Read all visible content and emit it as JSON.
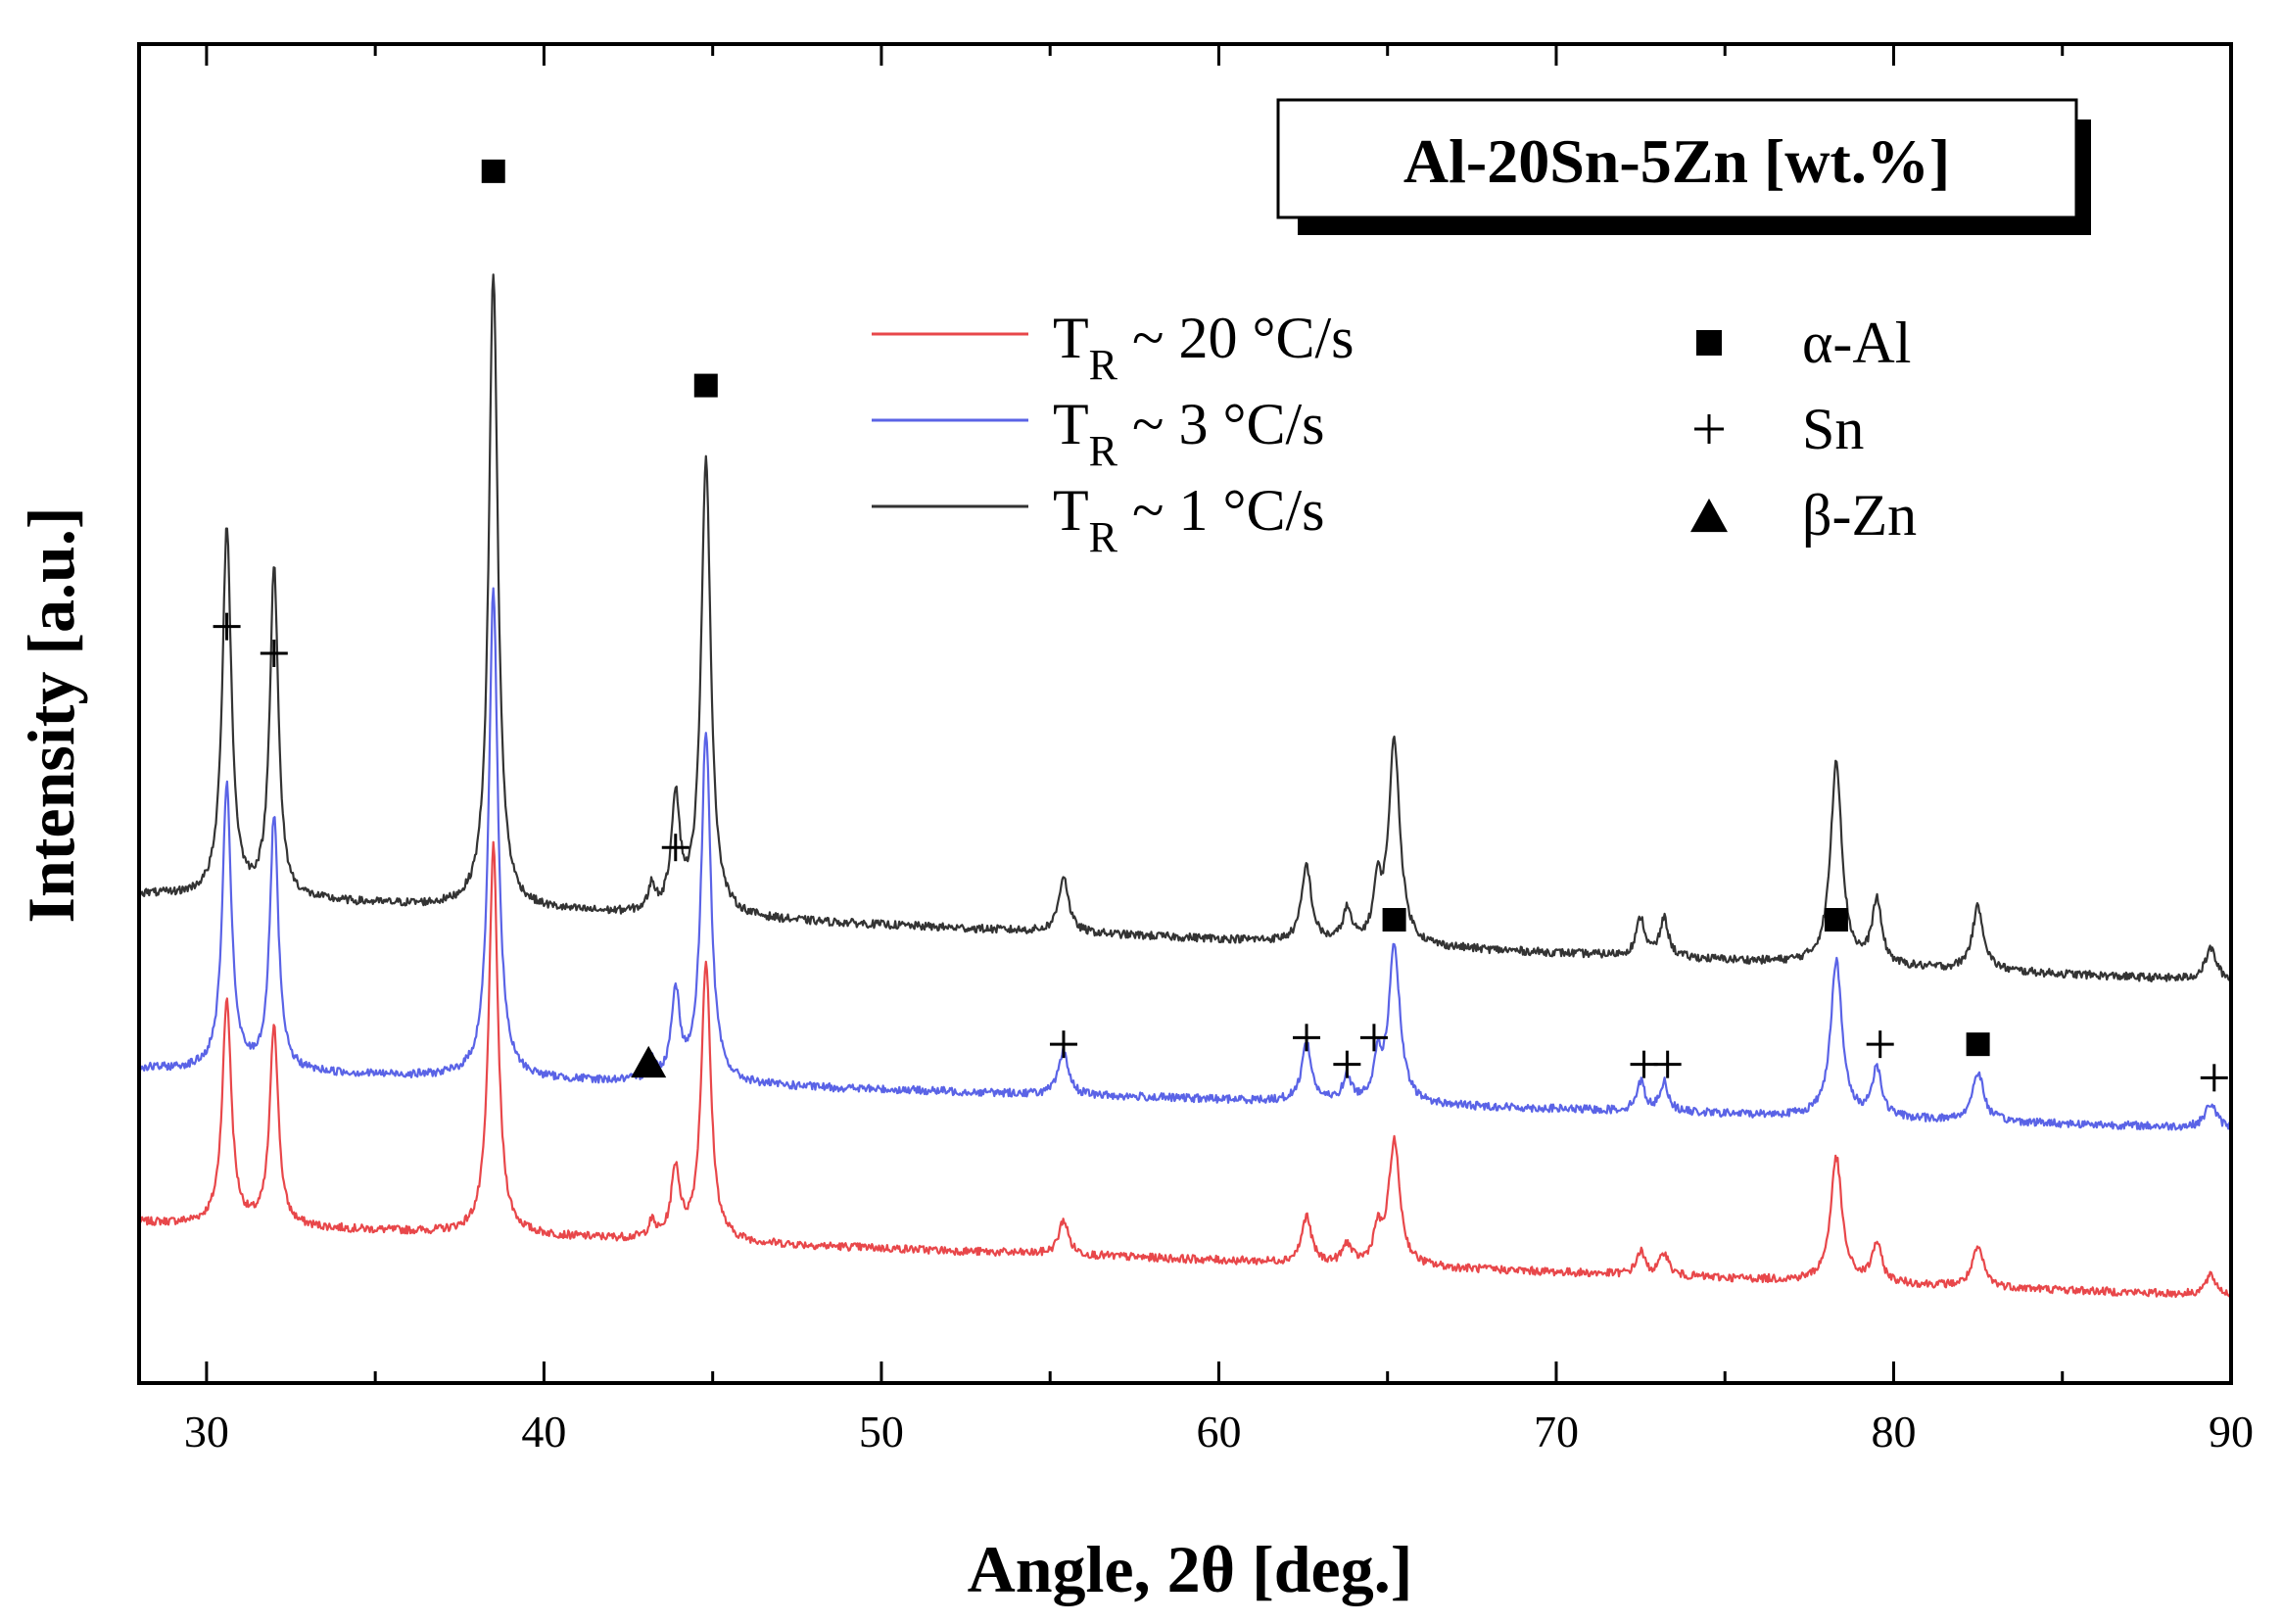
{
  "chart_data": {
    "type": "line",
    "title": "Al-20Sn-5Zn [wt.%]",
    "xlabel": "Angle, 2θ [deg.]",
    "ylabel": "Intensity [a.u.]",
    "xlim": [
      28,
      90
    ],
    "ylim": [
      0,
      1
    ],
    "x_ticks": [
      30,
      40,
      50,
      60,
      70,
      80,
      90
    ],
    "x_minor_step": 5,
    "y_ticks": false,
    "grid": false,
    "series": [
      {
        "name": "T_R ~ 20 °C/s",
        "legend_main": "T",
        "legend_sub": "R",
        "legend_rest": " ~ 20 °C/s",
        "color": "#e8474a",
        "baseline_start": 0.12,
        "baseline_end": 0.065,
        "scale": 0.5
      },
      {
        "name": "T_R ~ 3 °C/s",
        "legend_main": "T",
        "legend_sub": "R",
        "legend_rest": " ~ 3 °C/s",
        "color": "#5a63e6",
        "baseline_start": 0.235,
        "baseline_end": 0.19,
        "scale": 0.63
      },
      {
        "name": "T_R ~ 1 °C/s",
        "legend_main": "T",
        "legend_sub": "R",
        "legend_rest": " ~ 1 °C/s",
        "color": "#333333",
        "baseline_start": 0.365,
        "baseline_end": 0.3,
        "scale": 0.82
      }
    ],
    "peaks": [
      {
        "x": 30.6,
        "h": 0.58,
        "w": 0.16,
        "phase": "Sn"
      },
      {
        "x": 32.0,
        "h": 0.52,
        "w": 0.15,
        "phase": "Sn"
      },
      {
        "x": 38.5,
        "h": 1.0,
        "w": 0.16,
        "phase": "α-Al"
      },
      {
        "x": 43.2,
        "h": 0.04,
        "w": 0.12,
        "phase": "β-Zn"
      },
      {
        "x": 43.9,
        "h": 0.18,
        "w": 0.15,
        "phase": "Sn"
      },
      {
        "x": 44.8,
        "h": 0.72,
        "w": 0.17,
        "phase": "α-Al"
      },
      {
        "x": 55.4,
        "h": 0.09,
        "w": 0.17,
        "phase": "Sn"
      },
      {
        "x": 62.6,
        "h": 0.12,
        "w": 0.17,
        "phase": "Sn"
      },
      {
        "x": 63.8,
        "h": 0.05,
        "w": 0.15,
        "phase": "Sn"
      },
      {
        "x": 64.7,
        "h": 0.08,
        "w": 0.14,
        "phase": "Sn"
      },
      {
        "x": 65.2,
        "h": 0.32,
        "w": 0.2,
        "phase": "α-Al"
      },
      {
        "x": 72.5,
        "h": 0.06,
        "w": 0.15,
        "phase": "Sn"
      },
      {
        "x": 73.2,
        "h": 0.06,
        "w": 0.15,
        "phase": "Sn"
      },
      {
        "x": 78.3,
        "h": 0.32,
        "w": 0.2,
        "phase": "α-Al"
      },
      {
        "x": 79.5,
        "h": 0.1,
        "w": 0.17,
        "phase": "Sn"
      },
      {
        "x": 82.5,
        "h": 0.1,
        "w": 0.2,
        "phase": "α-Al"
      },
      {
        "x": 89.4,
        "h": 0.05,
        "w": 0.2,
        "phase": "Sn"
      }
    ],
    "phase_legend": [
      {
        "marker": "square",
        "label": "α-Al"
      },
      {
        "marker": "plus",
        "label": "Sn"
      },
      {
        "marker": "triangle",
        "label": "β-Zn"
      }
    ],
    "peak_markers": [
      {
        "marker": "square",
        "x": 38.5,
        "y": 0.905
      },
      {
        "marker": "square",
        "x": 44.8,
        "y": 0.745
      },
      {
        "marker": "square",
        "x": 65.2,
        "y": 0.346
      },
      {
        "marker": "square",
        "x": 78.3,
        "y": 0.346
      },
      {
        "marker": "square",
        "x": 82.5,
        "y": 0.253
      },
      {
        "marker": "plus",
        "x": 30.6,
        "y": 0.565
      },
      {
        "marker": "plus",
        "x": 32.0,
        "y": 0.545
      },
      {
        "marker": "plus",
        "x": 43.9,
        "y": 0.4
      },
      {
        "marker": "plus",
        "x": 55.4,
        "y": 0.253
      },
      {
        "marker": "plus",
        "x": 62.6,
        "y": 0.258
      },
      {
        "marker": "plus",
        "x": 63.8,
        "y": 0.238
      },
      {
        "marker": "plus",
        "x": 64.6,
        "y": 0.258
      },
      {
        "marker": "plus",
        "x": 72.6,
        "y": 0.238
      },
      {
        "marker": "plus",
        "x": 73.3,
        "y": 0.238
      },
      {
        "marker": "plus",
        "x": 79.6,
        "y": 0.253
      },
      {
        "marker": "plus",
        "x": 89.5,
        "y": 0.228
      },
      {
        "marker": "triangle",
        "x": 43.1,
        "y": 0.24
      }
    ]
  }
}
